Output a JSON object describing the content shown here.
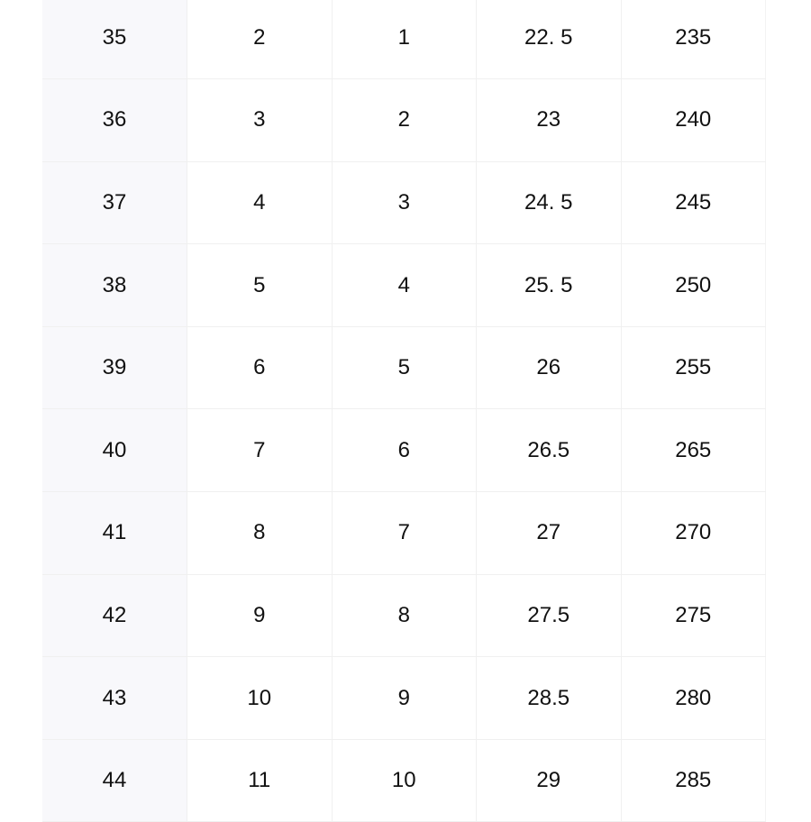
{
  "size_table": {
    "rows": [
      [
        "35",
        "2",
        "1",
        "22. 5",
        "235"
      ],
      [
        "36",
        "3",
        "2",
        "23",
        "240"
      ],
      [
        "37",
        "4",
        "3",
        "24. 5",
        "245"
      ],
      [
        "38",
        "5",
        "4",
        "25. 5",
        "250"
      ],
      [
        "39",
        "6",
        "5",
        "26",
        "255"
      ],
      [
        "40",
        "7",
        "6",
        "26.5",
        "265"
      ],
      [
        "41",
        "8",
        "7",
        "27",
        "270"
      ],
      [
        "42",
        "9",
        "8",
        "27.5",
        "275"
      ],
      [
        "43",
        "10",
        "9",
        "28.5",
        "280"
      ],
      [
        "44",
        "11",
        "10",
        "29",
        "285"
      ]
    ]
  }
}
